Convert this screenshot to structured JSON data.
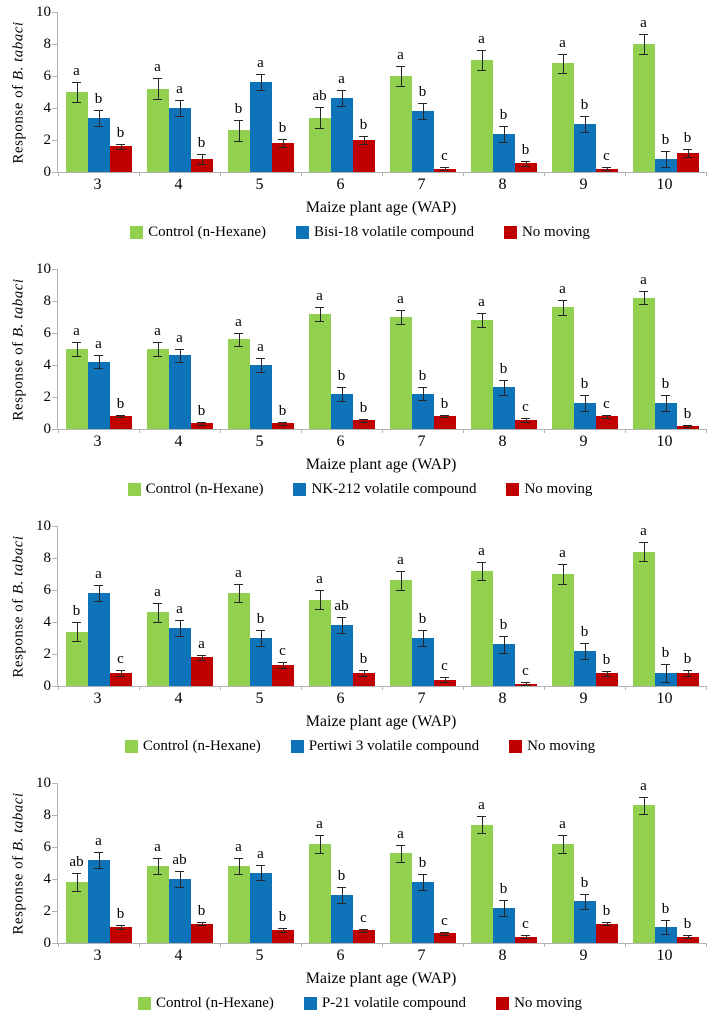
{
  "figure": {
    "ylabel_prefix": "Response of ",
    "ylabel_species": "B. tabaci",
    "xlabel": "Maize plant age (WAP)",
    "yticks": [
      0,
      2,
      4,
      6,
      8,
      10
    ],
    "ylim": [
      0,
      10
    ],
    "colors": {
      "control": "#92D050",
      "treatment": "#0E73B9",
      "no_moving": "#C00000",
      "axis": "#B3B3B3",
      "error_bar": "#262626"
    }
  },
  "chart_data": [
    {
      "type": "bar",
      "title": "",
      "xlabel": "Maize plant age (WAP)",
      "ylabel": "Response of B. tabaci",
      "ylim": [
        0,
        10
      ],
      "legend_position": "bottom",
      "categories": [
        "3",
        "4",
        "5",
        "6",
        "7",
        "8",
        "9",
        "10"
      ],
      "series": [
        {
          "name": "Control (n-Hexane)",
          "color": "#92D050",
          "values": [
            5.0,
            5.2,
            2.6,
            3.4,
            6.0,
            7.0,
            6.8,
            8.0
          ],
          "errors": [
            0.6,
            0.65,
            0.65,
            0.65,
            0.6,
            0.6,
            0.6,
            0.6
          ],
          "letters": [
            "a",
            "a",
            "b",
            "ab",
            "a",
            "a",
            "a",
            "a"
          ]
        },
        {
          "name": "Bisi-18 volatile compound",
          "color": "#0E73B9",
          "values": [
            3.4,
            4.0,
            5.6,
            4.6,
            3.8,
            2.4,
            3.0,
            0.8
          ],
          "errors": [
            0.5,
            0.5,
            0.5,
            0.5,
            0.5,
            0.5,
            0.5,
            0.5
          ],
          "letters": [
            "b",
            "a",
            "a",
            "a",
            "b",
            "b",
            "b",
            "b"
          ]
        },
        {
          "name": "No moving",
          "color": "#C00000",
          "values": [
            1.6,
            0.8,
            1.8,
            2.0,
            0.2,
            0.55,
            0.2,
            1.2
          ],
          "errors": [
            0.15,
            0.3,
            0.25,
            0.25,
            0.1,
            0.15,
            0.1,
            0.25
          ],
          "letters": [
            "b",
            "b",
            "b",
            "b",
            "c",
            "b",
            "c",
            "b"
          ]
        }
      ]
    },
    {
      "type": "bar",
      "title": "",
      "xlabel": "Maize plant age (WAP)",
      "ylabel": "Response of B. tabaci",
      "ylim": [
        0,
        10
      ],
      "legend_position": "bottom",
      "categories": [
        "3",
        "4",
        "5",
        "6",
        "7",
        "8",
        "9",
        "10"
      ],
      "series": [
        {
          "name": "Control (n-Hexane)",
          "color": "#92D050",
          "values": [
            5.0,
            5.0,
            5.6,
            7.2,
            7.0,
            6.8,
            7.6,
            8.2
          ],
          "errors": [
            0.45,
            0.45,
            0.4,
            0.45,
            0.45,
            0.45,
            0.45,
            0.4
          ],
          "letters": [
            "a",
            "a",
            "a",
            "a",
            "a",
            "a",
            "a",
            "a"
          ]
        },
        {
          "name": "NK-212 volatile compound",
          "color": "#0E73B9",
          "values": [
            4.2,
            4.6,
            4.0,
            2.2,
            2.2,
            2.6,
            1.6,
            1.6
          ],
          "errors": [
            0.4,
            0.4,
            0.45,
            0.45,
            0.4,
            0.45,
            0.5,
            0.5
          ],
          "letters": [
            "a",
            "a",
            "a",
            "b",
            "b",
            "b",
            "b",
            "b"
          ]
        },
        {
          "name": "No moving",
          "color": "#C00000",
          "values": [
            0.8,
            0.35,
            0.35,
            0.55,
            0.8,
            0.55,
            0.8,
            0.2
          ],
          "errors": [
            0.08,
            0.08,
            0.08,
            0.1,
            0.08,
            0.12,
            0.1,
            0.08
          ],
          "letters": [
            "b",
            "b",
            "b",
            "b",
            "b",
            "c",
            "c",
            "b"
          ]
        }
      ]
    },
    {
      "type": "bar",
      "title": "",
      "xlabel": "Maize plant age (WAP)",
      "ylabel": "Response of B. tabaci",
      "ylim": [
        0,
        10
      ],
      "legend_position": "bottom",
      "categories": [
        "3",
        "4",
        "5",
        "6",
        "7",
        "8",
        "9",
        "10"
      ],
      "series": [
        {
          "name": "Control (n-Hexane)",
          "color": "#92D050",
          "values": [
            3.4,
            4.6,
            5.8,
            5.4,
            6.6,
            7.2,
            7.0,
            8.4
          ],
          "errors": [
            0.6,
            0.6,
            0.55,
            0.6,
            0.6,
            0.55,
            0.6,
            0.6
          ],
          "letters": [
            "b",
            "a",
            "a",
            "a",
            "a",
            "a",
            "a",
            "a"
          ]
        },
        {
          "name": "Pertiwi 3 volatile compound",
          "color": "#0E73B9",
          "values": [
            5.8,
            3.6,
            3.0,
            3.8,
            3.0,
            2.6,
            2.2,
            0.8
          ],
          "errors": [
            0.5,
            0.5,
            0.5,
            0.5,
            0.5,
            0.55,
            0.5,
            0.55
          ],
          "letters": [
            "a",
            "a",
            "b",
            "ab",
            "b",
            "b",
            "b",
            "b"
          ]
        },
        {
          "name": "No moving",
          "color": "#C00000",
          "values": [
            0.8,
            1.8,
            1.3,
            0.8,
            0.4,
            0.15,
            0.8,
            0.8
          ],
          "errors": [
            0.2,
            0.15,
            0.2,
            0.2,
            0.15,
            0.1,
            0.15,
            0.2
          ],
          "letters": [
            "c",
            "a",
            "c",
            "b",
            "c",
            "c",
            "b",
            "b"
          ]
        }
      ]
    },
    {
      "type": "bar",
      "title": "",
      "xlabel": "Maize plant age (WAP)",
      "ylabel": "Response of B. tabaci",
      "ylim": [
        0,
        10
      ],
      "legend_position": "bottom",
      "categories": [
        "3",
        "4",
        "5",
        "6",
        "7",
        "8",
        "9",
        "10"
      ],
      "series": [
        {
          "name": "Control (n-Hexane)",
          "color": "#92D050",
          "values": [
            3.8,
            4.8,
            4.8,
            6.2,
            5.6,
            7.4,
            6.2,
            8.6
          ],
          "errors": [
            0.55,
            0.5,
            0.5,
            0.55,
            0.55,
            0.55,
            0.55,
            0.55
          ],
          "letters": [
            "ab",
            "a",
            "a",
            "a",
            "a",
            "a",
            "a",
            "a"
          ]
        },
        {
          "name": "P-21 volatile compound",
          "color": "#0E73B9",
          "values": [
            5.2,
            4.0,
            4.4,
            3.0,
            3.8,
            2.2,
            2.6,
            1.0
          ],
          "errors": [
            0.5,
            0.5,
            0.45,
            0.5,
            0.5,
            0.5,
            0.45,
            0.45
          ],
          "letters": [
            "a",
            "ab",
            "a",
            "b",
            "b",
            "b",
            "b",
            "b"
          ]
        },
        {
          "name": "No moving",
          "color": "#C00000",
          "values": [
            1.0,
            1.2,
            0.8,
            0.8,
            0.6,
            0.4,
            1.2,
            0.4
          ],
          "errors": [
            0.12,
            0.1,
            0.12,
            0.1,
            0.08,
            0.1,
            0.1,
            0.08
          ],
          "letters": [
            "b",
            "b",
            "b",
            "c",
            "c",
            "c",
            "b",
            "b"
          ]
        }
      ]
    }
  ]
}
